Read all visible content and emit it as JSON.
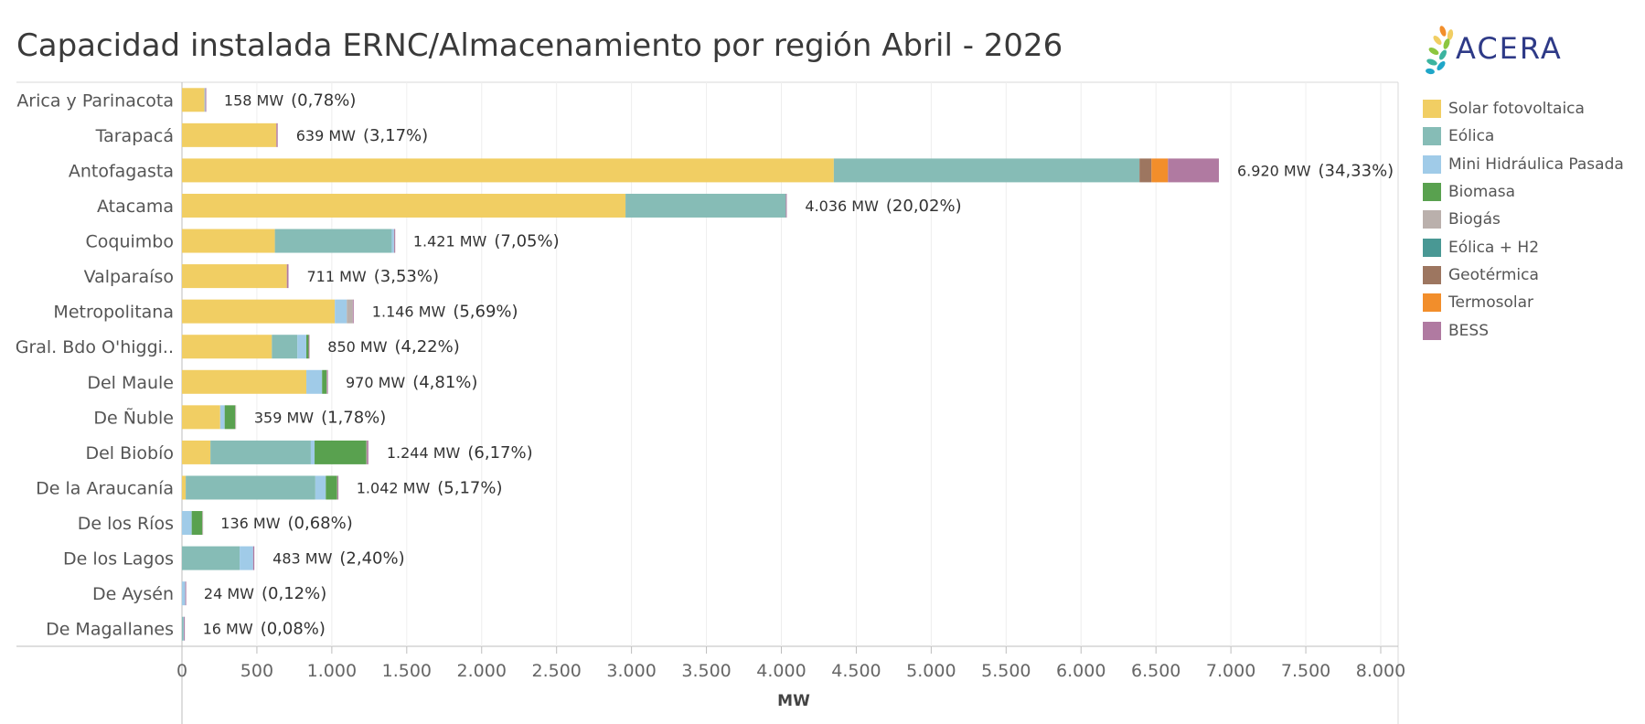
{
  "chart_data": {
    "type": "bar",
    "orientation": "horizontal",
    "stacked": true,
    "title": "Capacidad instalada ERNC/Almacenamiento por región Abril - 2026",
    "xlabel": "MW",
    "ylabel": "",
    "xlim": [
      0,
      8000
    ],
    "xticks": [
      0,
      500,
      1000,
      1500,
      2000,
      2500,
      3000,
      3500,
      4000,
      4500,
      5000,
      5500,
      6000,
      6500,
      7000,
      7500,
      8000
    ],
    "xtick_labels": [
      "0",
      "500",
      "1.000",
      "1.500",
      "2.000",
      "2.500",
      "3.000",
      "3.500",
      "4.000",
      "4.500",
      "5.000",
      "5.500",
      "6.000",
      "6.500",
      "7.000",
      "7.500",
      "8.000"
    ],
    "grid": true,
    "legend_position": "right",
    "categories": [
      "Arica y Parinacota",
      "Tarapacá",
      "Antofagasta",
      "Atacama",
      "Coquimbo",
      "Valparaíso",
      "Metropolitana",
      "Gral. Bdo O'higgi..",
      "Del Maule",
      "De Ñuble",
      "Del Biobío",
      "De la Araucanía",
      "De los Ríos",
      "De los Lagos",
      "De Aysén",
      "De Magallanes"
    ],
    "series": [
      {
        "name": "Solar fotovoltaica",
        "color": "#F1CE63",
        "values": [
          150,
          630,
          4350,
          2960,
          620,
          700,
          1020,
          600,
          830,
          255,
          190,
          25,
          0,
          0,
          0,
          0
        ]
      },
      {
        "name": "Eólica",
        "color": "#86BCB6",
        "values": [
          0,
          0,
          2040,
          1070,
          780,
          0,
          0,
          170,
          0,
          0,
          670,
          865,
          0,
          385,
          0,
          10
        ]
      },
      {
        "name": "Mini Hidráulica Pasada",
        "color": "#A0CBE8",
        "values": [
          6,
          0,
          0,
          0,
          15,
          0,
          80,
          60,
          105,
          30,
          25,
          70,
          65,
          90,
          22,
          3
        ]
      },
      {
        "name": "Biomasa",
        "color": "#59A14F",
        "values": [
          0,
          0,
          0,
          0,
          0,
          0,
          0,
          15,
          30,
          70,
          345,
          75,
          70,
          0,
          0,
          0
        ]
      },
      {
        "name": "Biogás",
        "color": "#BAB0AC",
        "values": [
          0,
          0,
          0,
          0,
          2,
          0,
          40,
          0,
          3,
          4,
          5,
          3,
          1,
          0,
          0,
          0
        ]
      },
      {
        "name": "Eólica + H2",
        "color": "#499894",
        "values": [
          0,
          0,
          0,
          0,
          0,
          0,
          0,
          0,
          0,
          0,
          0,
          0,
          0,
          0,
          0,
          0
        ]
      },
      {
        "name": "Geotérmica",
        "color": "#9D7660",
        "values": [
          0,
          0,
          80,
          0,
          0,
          0,
          0,
          0,
          0,
          0,
          0,
          0,
          0,
          0,
          0,
          0
        ]
      },
      {
        "name": "Termosolar",
        "color": "#F28E2B",
        "values": [
          0,
          0,
          110,
          0,
          0,
          0,
          0,
          0,
          0,
          0,
          0,
          0,
          0,
          0,
          0,
          0
        ]
      },
      {
        "name": "BESS",
        "color": "#B07AA1",
        "values": [
          2,
          9,
          340,
          6,
          4,
          11,
          6,
          5,
          2,
          0,
          9,
          4,
          0,
          8,
          2,
          3
        ]
      }
    ],
    "data_labels": [
      {
        "mw": "158 MW",
        "pct": "(0,78%)",
        "total": 158
      },
      {
        "mw": "639 MW",
        "pct": "(3,17%)",
        "total": 639
      },
      {
        "mw": "6.920 MW",
        "pct": "(34,33%)",
        "total": 6920
      },
      {
        "mw": "4.036 MW",
        "pct": "(20,02%)",
        "total": 4036
      },
      {
        "mw": "1.421 MW",
        "pct": "(7,05%)",
        "total": 1421
      },
      {
        "mw": "711 MW",
        "pct": "(3,53%)",
        "total": 711
      },
      {
        "mw": "1.146 MW",
        "pct": "(5,69%)",
        "total": 1146
      },
      {
        "mw": "850 MW",
        "pct": "(4,22%)",
        "total": 850
      },
      {
        "mw": "970 MW",
        "pct": "(4,81%)",
        "total": 970
      },
      {
        "mw": "359 MW",
        "pct": "(1,78%)",
        "total": 359
      },
      {
        "mw": "1.244 MW",
        "pct": "(6,17%)",
        "total": 1244
      },
      {
        "mw": "1.042 MW",
        "pct": "(5,17%)",
        "total": 1042
      },
      {
        "mw": "136 MW",
        "pct": "(0,68%)",
        "total": 136
      },
      {
        "mw": "483 MW",
        "pct": "(2,40%)",
        "total": 483
      },
      {
        "mw": "24 MW",
        "pct": "(0,12%)",
        "total": 24
      },
      {
        "mw": "16 MW",
        "pct": "(0,08%)",
        "total": 16
      }
    ]
  },
  "logo": {
    "text": "ACERA",
    "color": "#2E3A87"
  }
}
